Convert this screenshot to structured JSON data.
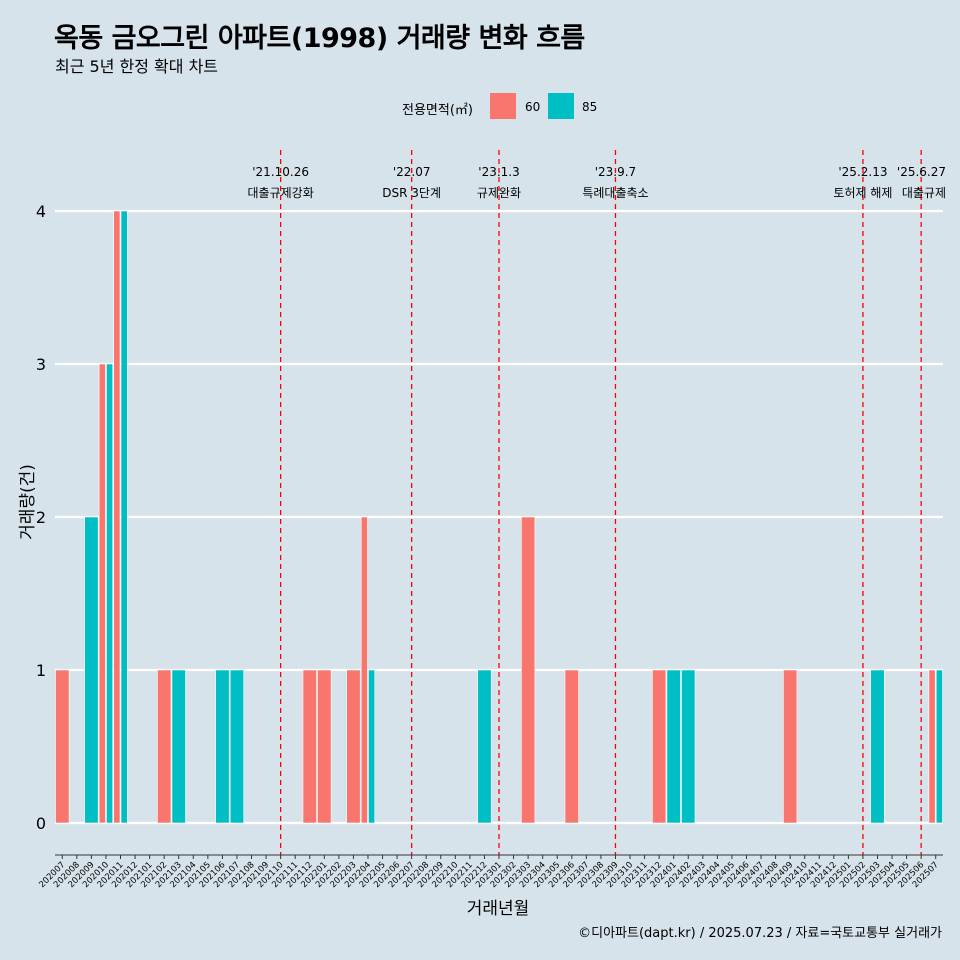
{
  "title": "옥동 금오그린 아파트(1998) 거래량 변화 흐름",
  "subtitle": "최근 5년 한정 확대 차트",
  "legend": {
    "title": "전용면적(㎡)",
    "items": [
      {
        "label": "60",
        "color": "#F8766D"
      },
      {
        "label": "85",
        "color": "#00BFC4"
      }
    ]
  },
  "caption": "©디아파트(dapt.kr) / 2025.07.23 / 자료=국토교통부 실거래가",
  "chart_data": {
    "type": "bar",
    "xlabel": "거래년월",
    "ylabel": "거래량(건)",
    "ylim": [
      0,
      4
    ],
    "yticks": [
      "0",
      "1",
      "2",
      "3",
      "4"
    ],
    "grid": true,
    "legend_position": "top",
    "categories": [
      "202007",
      "202008",
      "202009",
      "202010",
      "202011",
      "202012",
      "202101",
      "202102",
      "202103",
      "202104",
      "202105",
      "202106",
      "202107",
      "202108",
      "202109",
      "202110",
      "202111",
      "202112",
      "202201",
      "202202",
      "202203",
      "202204",
      "202205",
      "202206",
      "202207",
      "202208",
      "202209",
      "202210",
      "202211",
      "202212",
      "202301",
      "202302",
      "202303",
      "202304",
      "202305",
      "202306",
      "202307",
      "202308",
      "202309",
      "202310",
      "202311",
      "202312",
      "202401",
      "202402",
      "202403",
      "202404",
      "202405",
      "202406",
      "202407",
      "202408",
      "202409",
      "202410",
      "202411",
      "202412",
      "202501",
      "202502",
      "202503",
      "202504",
      "202505",
      "202506",
      "202507"
    ],
    "series": [
      {
        "name": "60",
        "color": "#F8766D",
        "values": [
          1,
          0,
          0,
          3,
          4,
          0,
          0,
          1,
          0,
          0,
          0,
          0,
          0,
          0,
          0,
          0,
          0,
          1,
          1,
          0,
          1,
          2,
          0,
          0,
          0,
          0,
          0,
          0,
          0,
          0,
          0,
          0,
          2,
          0,
          0,
          1,
          0,
          0,
          0,
          0,
          0,
          1,
          0,
          0,
          0,
          0,
          0,
          0,
          0,
          0,
          1,
          0,
          0,
          0,
          0,
          0,
          0,
          0,
          0,
          0,
          1
        ]
      },
      {
        "name": "85",
        "color": "#00BFC4",
        "values": [
          0,
          0,
          2,
          3,
          4,
          0,
          0,
          0,
          1,
          0,
          0,
          1,
          1,
          0,
          0,
          0,
          0,
          0,
          0,
          0,
          0,
          1,
          0,
          0,
          0,
          0,
          0,
          0,
          0,
          1,
          0,
          0,
          0,
          0,
          0,
          0,
          0,
          0,
          0,
          0,
          0,
          0,
          1,
          1,
          0,
          0,
          0,
          0,
          0,
          0,
          0,
          0,
          0,
          0,
          0,
          0,
          1,
          0,
          0,
          0,
          1
        ]
      }
    ],
    "annotations": [
      {
        "category": "202110",
        "date": "'21.10.26",
        "label": "대출규제강화"
      },
      {
        "category": "202207",
        "date": "'22.07",
        "label": "DSR 3단계"
      },
      {
        "category": "202301",
        "date": "'23.1.3",
        "label": "규제완화"
      },
      {
        "category": "202309",
        "date": "'23.9.7",
        "label": "특례대출축소"
      },
      {
        "category": "202502",
        "date": "'25.2.13",
        "label": "토허제 해제"
      },
      {
        "category": "202506",
        "date": "'25.6.27",
        "label": "대출규제"
      }
    ]
  }
}
